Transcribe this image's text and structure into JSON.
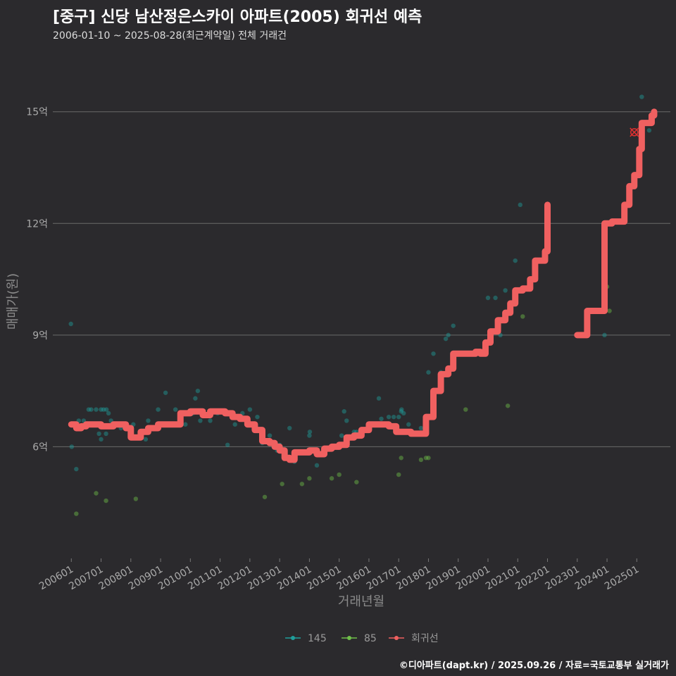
{
  "title": "[중구] 신당 남산정은스카이 아파트(2005) 회귀선 예측",
  "subtitle": "2006-01-10 ~ 2025-08-28(최근계약일) 전체 거래건",
  "footer": "©디아파트(dapt.kr) / 2025.09.26 / 자료=국토교통부 실거래가",
  "chart_data": {
    "type": "scatter",
    "xlabel": "거래년월",
    "ylabel": "매매가(원)",
    "xlim": [
      "2005-06-01",
      "2026-03-01"
    ],
    "ylim": [
      3.0,
      16.3
    ],
    "y_ticks": [
      {
        "value": 6,
        "label": "6억"
      },
      {
        "value": 9,
        "label": "9억"
      },
      {
        "value": 12,
        "label": "12억"
      },
      {
        "value": 15,
        "label": "15억"
      }
    ],
    "x_ticks": [
      {
        "value": "2006-01",
        "label": "200601"
      },
      {
        "value": "2007-01",
        "label": "200701"
      },
      {
        "value": "2008-01",
        "label": "200801"
      },
      {
        "value": "2009-01",
        "label": "200901"
      },
      {
        "value": "2010-01",
        "label": "201001"
      },
      {
        "value": "2011-01",
        "label": "201101"
      },
      {
        "value": "2012-01",
        "label": "201201"
      },
      {
        "value": "2013-01",
        "label": "201301"
      },
      {
        "value": "2014-01",
        "label": "201401"
      },
      {
        "value": "2015-01",
        "label": "201501"
      },
      {
        "value": "2016-01",
        "label": "201601"
      },
      {
        "value": "2017-01",
        "label": "201701"
      },
      {
        "value": "2018-01",
        "label": "201801"
      },
      {
        "value": "2019-01",
        "label": "201901"
      },
      {
        "value": "2020-01",
        "label": "202001"
      },
      {
        "value": "2021-01",
        "label": "202101"
      },
      {
        "value": "2022-01",
        "label": "202201"
      },
      {
        "value": "2023-01",
        "label": "202301"
      },
      {
        "value": "2024-01",
        "label": "202401"
      },
      {
        "value": "2025-01",
        "label": "202501"
      }
    ],
    "grid": "horizontal",
    "legend_position": "bottom",
    "series": [
      {
        "name": "145",
        "kind": "points",
        "color": "#1f9e9b",
        "points": [
          [
            "2006-01-10",
            9.3
          ],
          [
            "2006-01-20",
            6.0
          ],
          [
            "2006-03",
            5.4
          ],
          [
            "2006-04",
            6.7
          ],
          [
            "2006-06",
            6.7
          ],
          [
            "2006-08",
            7.0
          ],
          [
            "2006-09",
            7.0
          ],
          [
            "2006-10",
            6.6
          ],
          [
            "2006-11",
            7.0
          ],
          [
            "2006-12",
            6.6
          ],
          [
            "2006-12-20",
            6.35
          ],
          [
            "2007-01",
            7.0
          ],
          [
            "2007-01-15",
            6.2
          ],
          [
            "2007-02",
            7.0
          ],
          [
            "2007-03",
            6.35
          ],
          [
            "2007-03-20",
            7.0
          ],
          [
            "2007-04",
            6.9
          ],
          [
            "2007-05",
            6.7
          ],
          [
            "2007-07",
            6.6
          ],
          [
            "2007-09",
            6.5
          ],
          [
            "2008-02",
            6.6
          ],
          [
            "2008-05",
            6.4
          ],
          [
            "2008-07",
            6.2
          ],
          [
            "2008-08",
            6.7
          ],
          [
            "2008-12",
            7.0
          ],
          [
            "2009-03",
            7.45
          ],
          [
            "2009-07",
            7.0
          ],
          [
            "2009-09",
            6.7
          ],
          [
            "2009-11",
            6.6
          ],
          [
            "2010-02",
            6.9
          ],
          [
            "2010-03",
            7.3
          ],
          [
            "2010-04",
            7.5
          ],
          [
            "2010-05",
            6.7
          ],
          [
            "2010-09",
            6.7
          ],
          [
            "2010-12",
            6.9
          ],
          [
            "2011-04",
            6.05
          ],
          [
            "2011-07",
            6.6
          ],
          [
            "2011-10",
            6.9
          ],
          [
            "2012-01",
            7.0
          ],
          [
            "2012-02",
            6.6
          ],
          [
            "2012-04",
            6.8
          ],
          [
            "2012-06",
            6.1
          ],
          [
            "2012-09",
            6.3
          ],
          [
            "2012-12",
            5.9
          ],
          [
            "2013-01",
            6.05
          ],
          [
            "2013-03",
            5.9
          ],
          [
            "2013-05",
            6.5
          ],
          [
            "2013-07",
            5.6
          ],
          [
            "2014-01",
            6.3
          ],
          [
            "2014-01-20",
            6.4
          ],
          [
            "2014-04",
            5.5
          ],
          [
            "2014-10",
            6.0
          ],
          [
            "2015-02",
            6.3
          ],
          [
            "2015-03",
            6.95
          ],
          [
            "2015-04",
            6.7
          ],
          [
            "2015-07",
            6.4
          ],
          [
            "2015-08",
            6.4
          ],
          [
            "2015-10",
            6.4
          ],
          [
            "2016-01",
            6.45
          ],
          [
            "2016-03",
            6.6
          ],
          [
            "2016-05",
            7.3
          ],
          [
            "2016-06",
            6.75
          ],
          [
            "2016-09",
            6.8
          ],
          [
            "2016-11",
            6.8
          ],
          [
            "2017-01",
            6.8
          ],
          [
            "2017-02",
            6.95
          ],
          [
            "2017-02-20",
            7.0
          ],
          [
            "2017-03",
            6.9
          ],
          [
            "2017-05",
            6.6
          ],
          [
            "2017-10",
            6.5
          ],
          [
            "2018-01",
            8.0
          ],
          [
            "2018-03",
            8.5
          ],
          [
            "2018-06",
            8.0
          ],
          [
            "2018-08",
            8.9
          ],
          [
            "2018-09",
            9.0
          ],
          [
            "2018-11",
            9.25
          ],
          [
            "2020-01",
            10.0
          ],
          [
            "2020-04",
            10.0
          ],
          [
            "2020-06",
            9.0
          ],
          [
            "2020-08",
            10.2
          ],
          [
            "2020-12",
            11.0
          ],
          [
            "2021-02",
            12.5
          ],
          [
            "2023-12",
            9.0
          ],
          [
            "2025-03",
            15.4
          ],
          [
            "2025-06",
            14.5
          ]
        ]
      },
      {
        "name": "85",
        "kind": "points",
        "color": "#6fbf4a",
        "points": [
          [
            "2006-03",
            4.2
          ],
          [
            "2006-11",
            4.75
          ],
          [
            "2007-03",
            4.55
          ],
          [
            "2008-03",
            4.6
          ],
          [
            "2012-07",
            4.65
          ],
          [
            "2013-02",
            5.0
          ],
          [
            "2013-10",
            5.0
          ],
          [
            "2014-01",
            5.15
          ],
          [
            "2014-10",
            5.15
          ],
          [
            "2015-01",
            5.25
          ],
          [
            "2015-08",
            5.05
          ],
          [
            "2017-01",
            5.25
          ],
          [
            "2017-02",
            5.7
          ],
          [
            "2017-10",
            5.65
          ],
          [
            "2017-12",
            5.7
          ],
          [
            "2018-01",
            5.7
          ],
          [
            "2019-04",
            7.0
          ],
          [
            "2020-09",
            7.1
          ],
          [
            "2021-03",
            9.5
          ],
          [
            "2024-01",
            10.3
          ],
          [
            "2024-02",
            9.65
          ]
        ]
      },
      {
        "name": "회귀선",
        "kind": "line",
        "color": "#f06060",
        "segments": [
          [
            [
              "2006-01",
              6.6
            ],
            [
              "2006-03",
              6.5
            ],
            [
              "2006-05",
              6.55
            ],
            [
              "2006-07",
              6.6
            ],
            [
              "2006-11",
              6.6
            ],
            [
              "2007-01",
              6.55
            ],
            [
              "2007-06",
              6.6
            ],
            [
              "2007-11",
              6.5
            ],
            [
              "2008-01",
              6.25
            ],
            [
              "2008-05",
              6.4
            ],
            [
              "2008-08",
              6.5
            ],
            [
              "2008-12",
              6.6
            ],
            [
              "2009-06",
              6.6
            ],
            [
              "2009-09",
              6.9
            ],
            [
              "2010-01",
              6.95
            ],
            [
              "2010-06",
              6.85
            ],
            [
              "2010-09",
              6.95
            ],
            [
              "2011-03",
              6.9
            ],
            [
              "2011-06",
              6.8
            ],
            [
              "2011-09",
              6.75
            ],
            [
              "2011-12",
              6.6
            ],
            [
              "2012-03",
              6.45
            ],
            [
              "2012-06",
              6.15
            ],
            [
              "2012-09",
              6.1
            ],
            [
              "2012-11",
              6.0
            ],
            [
              "2013-01",
              5.9
            ],
            [
              "2013-03",
              5.7
            ],
            [
              "2013-05",
              5.65
            ],
            [
              "2013-07",
              5.85
            ],
            [
              "2013-10",
              5.85
            ],
            [
              "2014-01",
              5.9
            ],
            [
              "2014-04",
              5.8
            ],
            [
              "2014-07",
              5.95
            ],
            [
              "2014-10",
              6.0
            ],
            [
              "2015-01",
              6.05
            ],
            [
              "2015-04",
              6.25
            ],
            [
              "2015-07",
              6.3
            ],
            [
              "2015-10",
              6.45
            ],
            [
              "2016-01",
              6.6
            ],
            [
              "2016-06",
              6.6
            ],
            [
              "2016-09",
              6.55
            ],
            [
              "2016-12",
              6.4
            ],
            [
              "2017-06",
              6.35
            ],
            [
              "2017-10",
              6.35
            ],
            [
              "2017-12",
              6.8
            ],
            [
              "2018-03",
              7.5
            ],
            [
              "2018-06",
              7.95
            ],
            [
              "2018-09",
              8.1
            ],
            [
              "2018-11",
              8.5
            ],
            [
              "2019-05",
              8.5
            ],
            [
              "2019-08",
              8.55
            ],
            [
              "2019-10",
              8.5
            ],
            [
              "2019-12",
              8.8
            ],
            [
              "2020-02",
              9.1
            ],
            [
              "2020-05",
              9.4
            ],
            [
              "2020-08",
              9.6
            ],
            [
              "2020-10",
              9.85
            ],
            [
              "2020-12",
              10.2
            ],
            [
              "2021-03",
              10.25
            ],
            [
              "2021-06",
              10.5
            ],
            [
              "2021-08",
              11.0
            ],
            [
              "2021-10",
              11.0
            ],
            [
              "2021-12",
              11.25
            ],
            [
              "2022-01",
              12.5
            ]
          ],
          [
            [
              "2023-01",
              9.0
            ],
            [
              "2023-03",
              9.0
            ],
            [
              "2023-05",
              9.65
            ],
            [
              "2023-08",
              9.65
            ],
            [
              "2023-10",
              9.65
            ],
            [
              "2023-12",
              12.0
            ],
            [
              "2024-03",
              12.05
            ],
            [
              "2024-06",
              12.05
            ],
            [
              "2024-08",
              12.5
            ],
            [
              "2024-10",
              13.0
            ],
            [
              "2024-12",
              13.3
            ],
            [
              "2025-02",
              14.0
            ],
            [
              "2025-03",
              14.7
            ],
            [
              "2025-06",
              14.7
            ],
            [
              "2025-07",
              14.9
            ],
            [
              "2025-08",
              15.0
            ]
          ]
        ]
      }
    ],
    "highlight_point": {
      "x": "2024-12",
      "y": 14.45,
      "color": "#e03030"
    }
  }
}
